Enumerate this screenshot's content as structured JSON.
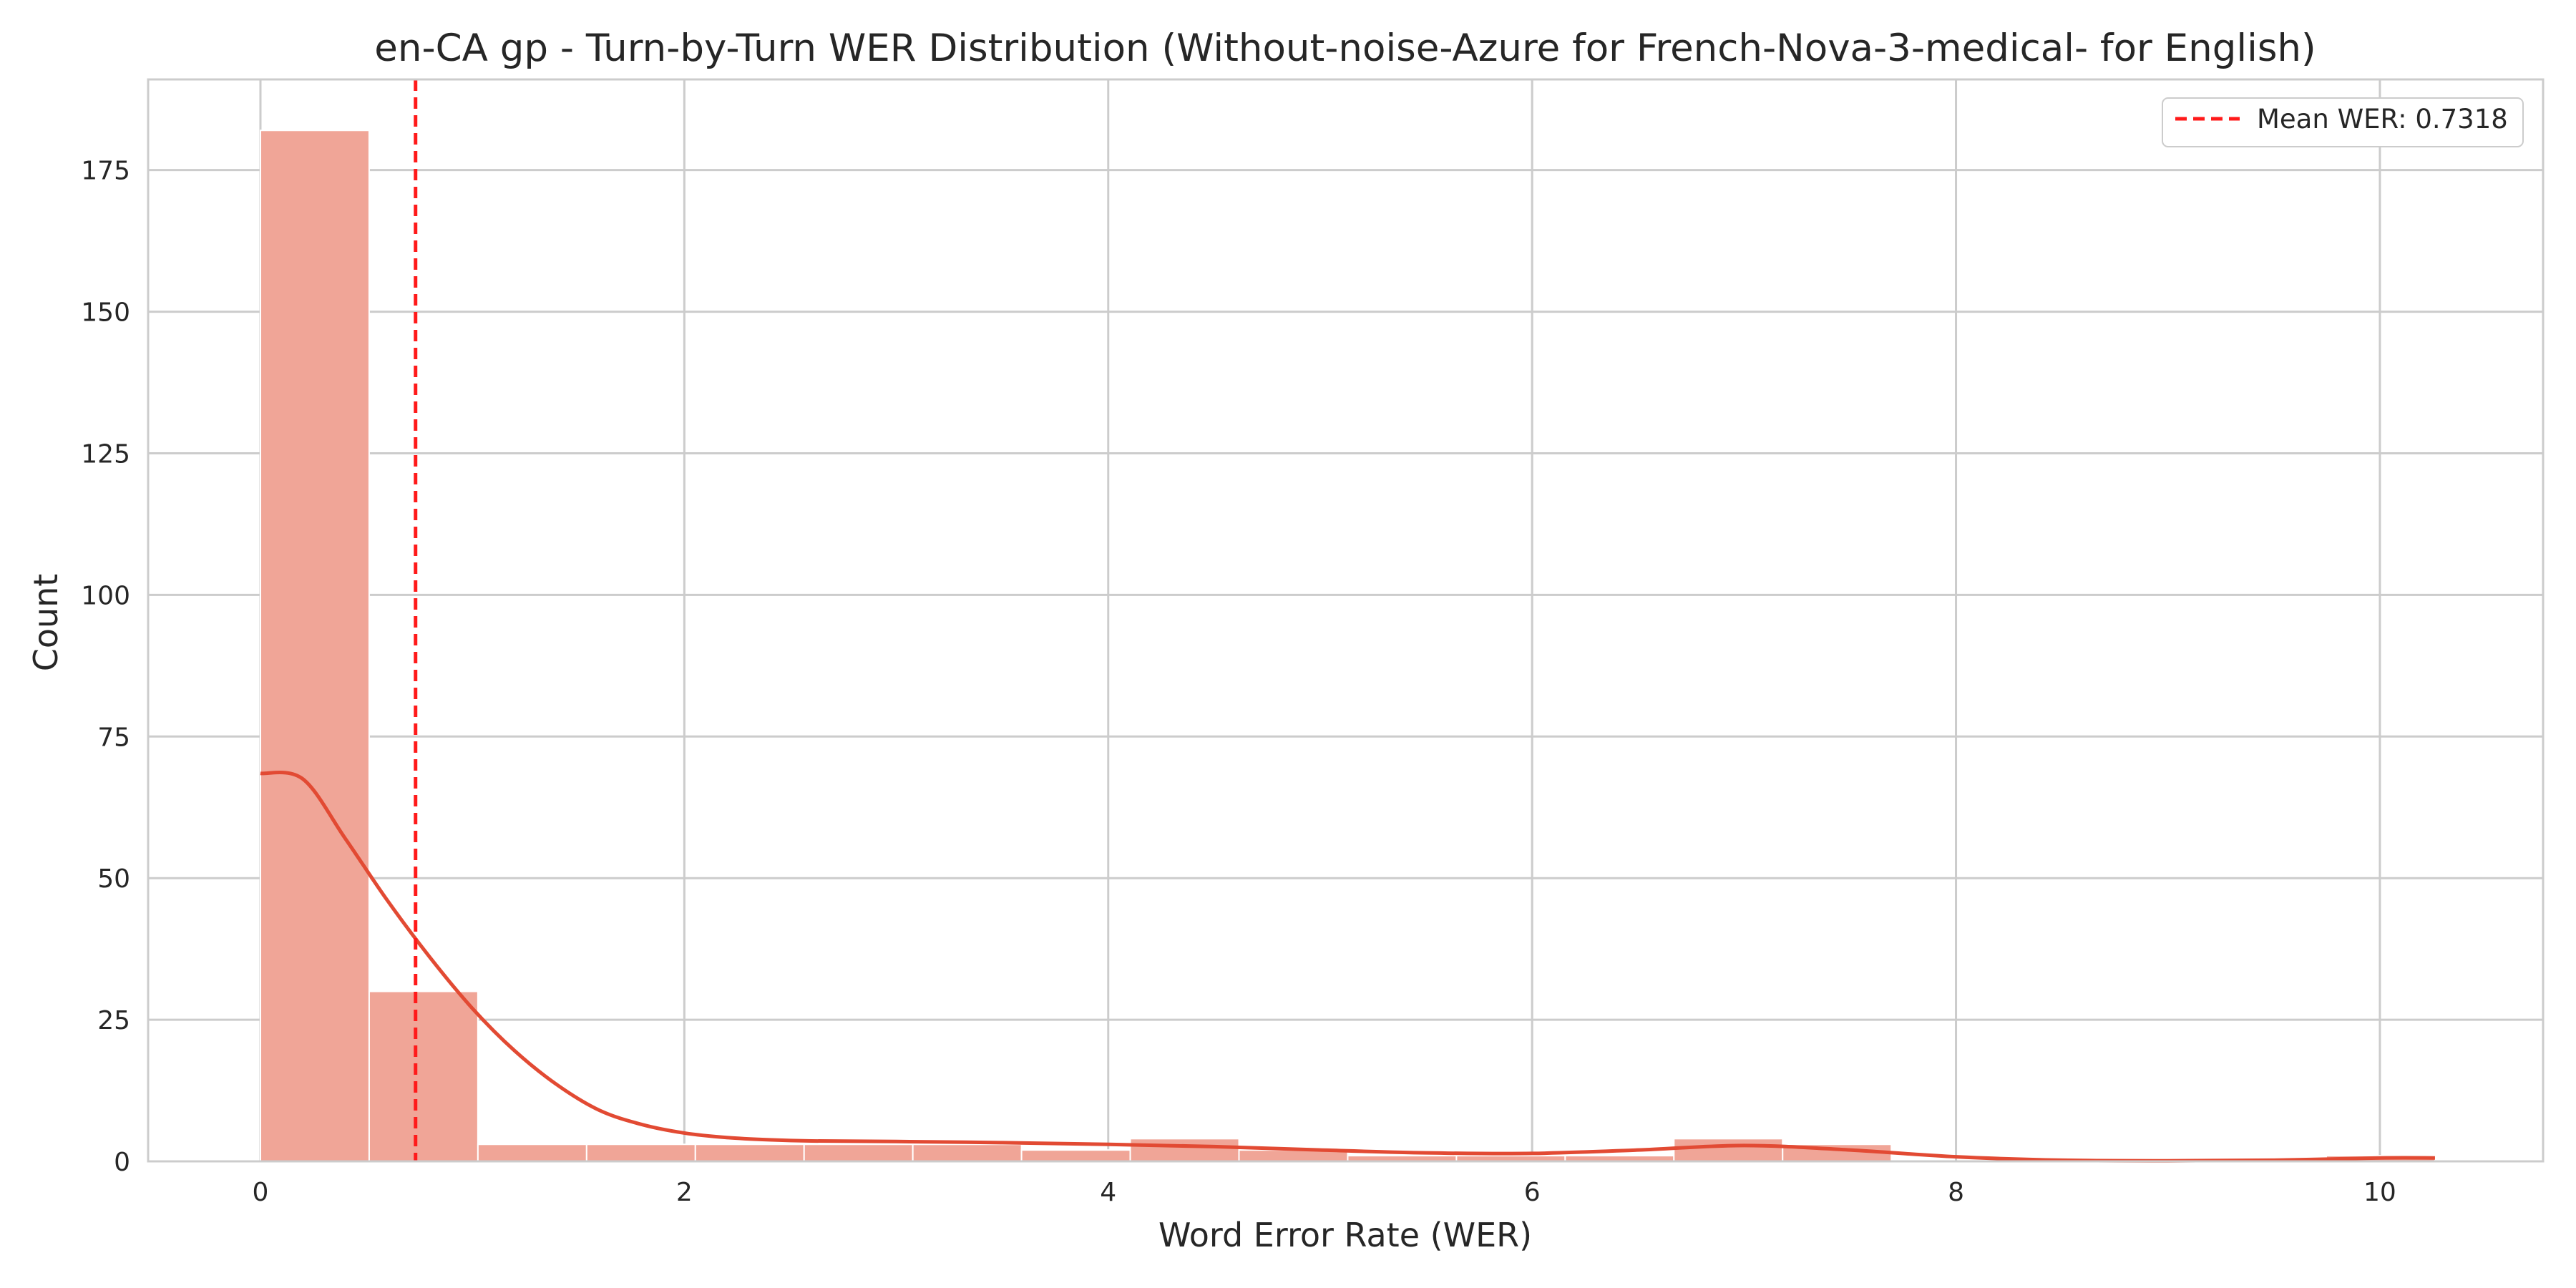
{
  "chart_data": {
    "type": "bar",
    "title": "en-CA gp - Turn-by-Turn WER Distribution (Without-noise-Azure for French-Nova-3-medical- for English)",
    "xlabel": "Word Error Rate (WER)",
    "ylabel": "Count",
    "xlim": [
      -0.53,
      10.77
    ],
    "ylim": [
      0,
      191
    ],
    "xticks": [
      0,
      2,
      4,
      6,
      8,
      10
    ],
    "yticks": [
      0,
      25,
      50,
      75,
      100,
      125,
      150,
      175
    ],
    "grid": true,
    "bin_edges": [
      0,
      0.513,
      1.026,
      1.539,
      2.052,
      2.565,
      3.078,
      3.591,
      4.104,
      4.617,
      5.13,
      5.643,
      6.156,
      6.669,
      7.182,
      7.695,
      8.208,
      8.721,
      9.234,
      9.747,
      10.26
    ],
    "counts": [
      182,
      30,
      3,
      3,
      3,
      3,
      3,
      2,
      4,
      2,
      1,
      1,
      1,
      4,
      3,
      0,
      0,
      0,
      0,
      1
    ],
    "kde": {
      "x": [
        0,
        0.2,
        0.4,
        0.6,
        0.8,
        1.0,
        1.2,
        1.4,
        1.6,
        1.8,
        2.0,
        2.2,
        2.4,
        2.6,
        3.0,
        3.5,
        4.0,
        4.5,
        5.0,
        5.5,
        6.0,
        6.5,
        7.0,
        7.5,
        8.0,
        8.5,
        9.0,
        9.5,
        10.0,
        10.26
      ],
      "y": [
        68.5,
        67.5,
        57,
        46,
        36,
        27,
        19.5,
        13.5,
        9,
        6.5,
        5,
        4.2,
        3.8,
        3.6,
        3.5,
        3.3,
        3.0,
        2.6,
        2.0,
        1.5,
        1.4,
        2.0,
        2.8,
        2.0,
        0.8,
        0.2,
        0.1,
        0.2,
        0.6,
        0.6
      ]
    },
    "mean_line": {
      "value": 0.7318,
      "label": "Mean WER: 0.7318"
    },
    "legend": {
      "placement": "top-right",
      "entries": [
        "Mean WER: 0.7318"
      ]
    },
    "colors": {
      "bar_fill": "#f0a597",
      "bar_edge": "#ffffff",
      "kde_line": "#e24a33",
      "mean_line": "#ff1a1a",
      "grid": "#cccccc",
      "axes_edge": "#cccccc",
      "text": "#262626"
    }
  }
}
